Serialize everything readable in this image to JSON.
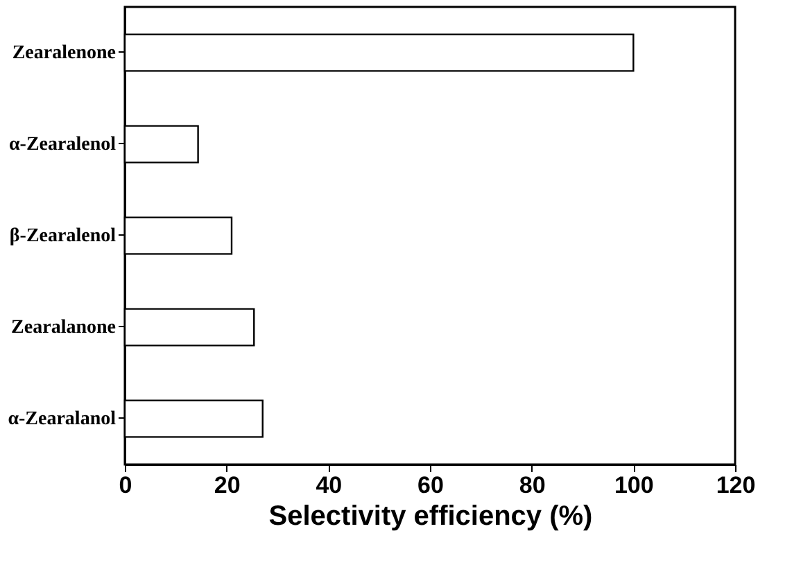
{
  "chart_data": {
    "type": "bar",
    "orientation": "horizontal",
    "xlabel": "Selectivity efficiency (%)",
    "categories": [
      "Zearalenone",
      "α-Zearalenol",
      "β-Zearalenol",
      "Zearalanone",
      "α-Zearalanol"
    ],
    "values": [
      100,
      14.4,
      21.0,
      25.4,
      27.1
    ],
    "color": "#ffffff",
    "xlim": [
      0,
      120
    ],
    "xticks": [
      0,
      20,
      40,
      60,
      80,
      100,
      120
    ],
    "grid": false
  }
}
